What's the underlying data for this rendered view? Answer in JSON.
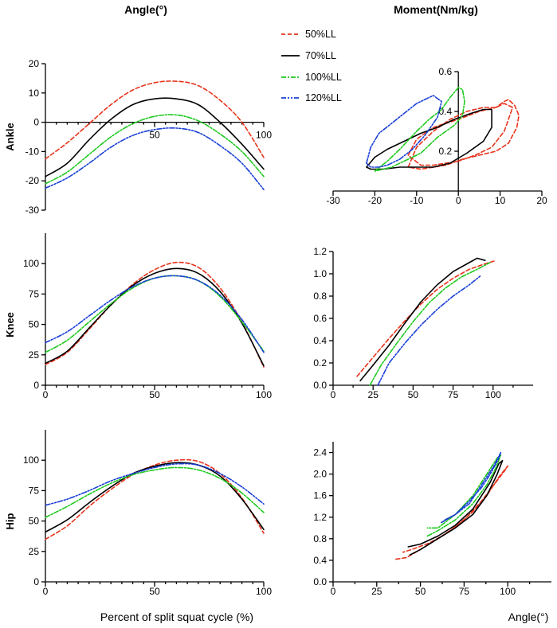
{
  "figure": {
    "col_titles": [
      "Angle(°)",
      "Moment(Nm/kg)"
    ],
    "row_labels": [
      "Ankle",
      "Knee",
      "Hip"
    ],
    "xlabel_left": "Percent of split squat cycle (%)",
    "xlabel_right": "Angle(°)",
    "legend": [
      {
        "name": "50%LL",
        "color": "#e8331c",
        "dash": "dashed"
      },
      {
        "name": "70%LL",
        "color": "#000000",
        "dash": "solid"
      },
      {
        "name": "100%LL",
        "color": "#1fc91f",
        "dash": "dashdot"
      },
      {
        "name": "120%LL",
        "color": "#1a3fd6",
        "dash": "dashdotdot"
      }
    ]
  },
  "chart_data": [
    {
      "id": "ankle-angle",
      "type": "line",
      "row_label": "Ankle",
      "xlabel": "",
      "ylabel": "",
      "xlim": [
        0,
        100
      ],
      "ylim": [
        -30,
        20
      ],
      "xticks": [
        50,
        100
      ],
      "yticks": [
        -30,
        -20,
        -10,
        0,
        10,
        20
      ],
      "x_axis_at": 0,
      "x": [
        0,
        10,
        20,
        30,
        40,
        50,
        60,
        70,
        80,
        90,
        100
      ],
      "series": [
        {
          "name": "50%LL",
          "values": [
            -12.5,
            -7,
            -0.5,
            6,
            11,
            13.5,
            14,
            12.5,
            7.5,
            0,
            -12
          ]
        },
        {
          "name": "70%LL",
          "values": [
            -18.5,
            -14,
            -6,
            1,
            6,
            8,
            8,
            6,
            0,
            -7.5,
            -16
          ]
        },
        {
          "name": "100%LL",
          "values": [
            -21,
            -17,
            -11,
            -5,
            -0.5,
            2,
            2.5,
            0.5,
            -4,
            -10,
            -18.5
          ]
        },
        {
          "name": "120%LL",
          "values": [
            -22.5,
            -19,
            -14,
            -8.5,
            -4.5,
            -2.5,
            -2,
            -3.5,
            -8,
            -14,
            -23
          ]
        }
      ]
    },
    {
      "id": "ankle-moment",
      "type": "line",
      "row_label": "Ankle",
      "xlabel": "",
      "ylabel": "",
      "xlim": [
        -30,
        20
      ],
      "ylim": [
        0,
        0.6
      ],
      "xticks": [
        -30,
        -20,
        -10,
        0,
        10,
        20
      ],
      "yticks": [
        0.2,
        0.4,
        0.6
      ],
      "x_axis_at": 0.0,
      "y_axis_at": 0,
      "series": [
        {
          "name": "50%LL",
          "x": [
            -12,
            -10,
            -6,
            0,
            5,
            9,
            11,
            12,
            13.5,
            14.5,
            14,
            12,
            9,
            5,
            1,
            -3,
            -6,
            -9,
            -12,
            -10,
            -6,
            -2,
            2,
            6,
            9,
            11,
            13,
            11,
            8,
            4,
            0,
            -3,
            -6,
            -9,
            -12
          ],
          "y": [
            0.18,
            0.26,
            0.32,
            0.36,
            0.4,
            0.42,
            0.45,
            0.46,
            0.43,
            0.38,
            0.32,
            0.24,
            0.2,
            0.18,
            0.16,
            0.13,
            0.12,
            0.11,
            0.12,
            0.22,
            0.3,
            0.36,
            0.4,
            0.42,
            0.42,
            0.44,
            0.42,
            0.3,
            0.22,
            0.18,
            0.15,
            0.14,
            0.13,
            0.13,
            0.18
          ]
        },
        {
          "name": "70%LL",
          "x": [
            -22,
            -20,
            -17,
            -13,
            -9,
            -5,
            -1,
            3,
            6,
            8,
            8,
            6,
            2,
            -2,
            -6,
            -10,
            -14,
            -18,
            -21,
            -22
          ],
          "y": [
            0.12,
            0.17,
            0.21,
            0.25,
            0.29,
            0.32,
            0.36,
            0.39,
            0.41,
            0.41,
            0.32,
            0.25,
            0.19,
            0.14,
            0.12,
            0.12,
            0.12,
            0.11,
            0.11,
            0.12
          ]
        },
        {
          "name": "100%LL",
          "x": [
            -20,
            -17,
            -14,
            -10,
            -7,
            -4,
            -2,
            0,
            1,
            1.5,
            1,
            -1,
            -3,
            -5,
            -7,
            -9,
            -12,
            -14,
            -16,
            -18,
            -20
          ],
          "y": [
            0.1,
            0.15,
            0.21,
            0.3,
            0.36,
            0.41,
            0.47,
            0.52,
            0.51,
            0.45,
            0.38,
            0.33,
            0.3,
            0.27,
            0.23,
            0.19,
            0.16,
            0.14,
            0.12,
            0.11,
            0.1
          ]
        },
        {
          "name": "120%LL",
          "x": [
            -22,
            -21,
            -19,
            -16,
            -13,
            -10,
            -7,
            -6,
            -4,
            -5,
            -8,
            -11,
            -14,
            -17,
            -19,
            -21,
            -22
          ],
          "y": [
            0.14,
            0.22,
            0.29,
            0.34,
            0.39,
            0.44,
            0.47,
            0.48,
            0.45,
            0.37,
            0.28,
            0.21,
            0.16,
            0.13,
            0.12,
            0.12,
            0.14
          ]
        }
      ]
    },
    {
      "id": "knee-angle",
      "type": "line",
      "row_label": "Knee",
      "xlabel": "",
      "ylabel": "",
      "xlim": [
        0,
        100
      ],
      "ylim": [
        0,
        125
      ],
      "xticks": [
        0,
        50,
        100
      ],
      "yticks": [
        0,
        25,
        50,
        75,
        100
      ],
      "x_axis_at": 0,
      "x": [
        0,
        10,
        20,
        30,
        40,
        50,
        60,
        70,
        80,
        90,
        100
      ],
      "series": [
        {
          "name": "50%LL",
          "values": [
            17,
            27,
            46,
            66,
            83,
            95,
            101,
            97,
            80,
            52,
            15
          ]
        },
        {
          "name": "70%LL",
          "values": [
            18,
            28,
            47,
            66,
            82,
            92,
            96,
            92,
            77,
            51,
            16
          ]
        },
        {
          "name": "100%LL",
          "values": [
            27,
            37,
            52,
            67,
            80,
            88,
            90,
            86,
            73,
            52,
            28
          ]
        },
        {
          "name": "120%LL",
          "values": [
            35,
            44,
            57,
            70,
            81,
            88,
            90,
            86,
            74,
            54,
            27
          ]
        }
      ]
    },
    {
      "id": "knee-moment",
      "type": "line",
      "row_label": "Knee",
      "xlabel": "",
      "ylabel": "",
      "xlim": [
        0,
        125
      ],
      "ylim": [
        0,
        1.2
      ],
      "xticks": [
        0,
        25,
        50,
        75,
        100
      ],
      "yticks": [
        0,
        0.2,
        0.4,
        0.6,
        0.8,
        1.0,
        1.2
      ],
      "x_axis_at": 0,
      "series": [
        {
          "name": "50%LL",
          "x": [
            15,
            25,
            35,
            45,
            55,
            65,
            75,
            85,
            95,
            102
          ],
          "y": [
            0.08,
            0.25,
            0.42,
            0.58,
            0.73,
            0.86,
            0.96,
            1.04,
            1.09,
            1.12
          ]
        },
        {
          "name": "70%LL",
          "x": [
            17,
            25,
            35,
            45,
            55,
            65,
            75,
            85,
            90,
            95
          ],
          "y": [
            0.04,
            0.18,
            0.36,
            0.56,
            0.75,
            0.9,
            1.02,
            1.1,
            1.14,
            1.12
          ]
        },
        {
          "name": "100%LL",
          "x": [
            23,
            30,
            40,
            50,
            60,
            70,
            80,
            90,
            98
          ],
          "y": [
            0.0,
            0.18,
            0.38,
            0.57,
            0.74,
            0.87,
            0.97,
            1.04,
            1.1
          ]
        },
        {
          "name": "120%LL",
          "x": [
            28,
            35,
            45,
            55,
            65,
            75,
            85,
            92
          ],
          "y": [
            0.0,
            0.2,
            0.38,
            0.54,
            0.68,
            0.8,
            0.9,
            0.98
          ]
        }
      ]
    },
    {
      "id": "hip-angle",
      "type": "line",
      "row_label": "Hip",
      "xlabel": "Percent of split squat cycle (%)",
      "ylabel": "",
      "xlim": [
        0,
        100
      ],
      "ylim": [
        0,
        125
      ],
      "xticks": [
        0,
        50,
        100
      ],
      "yticks": [
        0,
        25,
        50,
        75,
        100
      ],
      "x_axis_at": 0,
      "x": [
        0,
        10,
        20,
        30,
        40,
        50,
        60,
        70,
        80,
        90,
        100
      ],
      "series": [
        {
          "name": "50%LL",
          "values": [
            35,
            46,
            62,
            76,
            88,
            96,
            100,
            99,
            89,
            69,
            40
          ]
        },
        {
          "name": "70%LL",
          "values": [
            41,
            51,
            65,
            78,
            89,
            95,
            98,
            96,
            87,
            68,
            43
          ]
        },
        {
          "name": "100%LL",
          "values": [
            53,
            62,
            72,
            81,
            88,
            92,
            94,
            92,
            85,
            73,
            57
          ]
        },
        {
          "name": "120%LL",
          "values": [
            63,
            68,
            75,
            83,
            89,
            94,
            97,
            96,
            89,
            78,
            64
          ]
        }
      ]
    },
    {
      "id": "hip-moment",
      "type": "line",
      "row_label": "Hip",
      "xlabel": "Angle(°)",
      "ylabel": "",
      "xlim": [
        0,
        125
      ],
      "ylim": [
        0,
        2.6
      ],
      "xticks": [
        0,
        25,
        50,
        75,
        100
      ],
      "yticks": [
        0,
        0.4,
        0.8,
        1.2,
        1.6,
        2.0,
        2.4
      ],
      "x_axis_at": 0,
      "series": [
        {
          "name": "50%LL",
          "x": [
            36,
            42,
            50,
            60,
            70,
            80,
            88,
            95,
            100,
            98,
            92,
            85,
            75,
            65,
            55,
            45,
            40
          ],
          "y": [
            0.42,
            0.45,
            0.6,
            0.8,
            1.02,
            1.3,
            1.6,
            1.95,
            2.15,
            2.05,
            1.8,
            1.5,
            1.15,
            0.9,
            0.72,
            0.6,
            0.55
          ]
        },
        {
          "name": "70%LL",
          "x": [
            44,
            50,
            60,
            70,
            80,
            88,
            94,
            97,
            95,
            90,
            80,
            70,
            60,
            50,
            43
          ],
          "y": [
            0.5,
            0.6,
            0.8,
            1.0,
            1.25,
            1.6,
            2.0,
            2.25,
            2.2,
            1.85,
            1.35,
            1.05,
            0.85,
            0.7,
            0.65
          ]
        },
        {
          "name": "100%LL",
          "x": [
            54,
            60,
            70,
            80,
            88,
            93,
            96,
            94,
            88,
            80,
            70,
            60,
            54
          ],
          "y": [
            0.85,
            0.95,
            1.15,
            1.45,
            1.8,
            2.1,
            2.35,
            2.3,
            2.0,
            1.6,
            1.25,
            1.0,
            1.0
          ]
        },
        {
          "name": "120%LL",
          "x": [
            62,
            70,
            78,
            85,
            90,
            95,
            96,
            92,
            85,
            78,
            70,
            64
          ],
          "y": [
            1.1,
            1.25,
            1.5,
            1.75,
            2.0,
            2.3,
            2.4,
            2.15,
            1.8,
            1.45,
            1.25,
            1.15
          ]
        }
      ]
    }
  ]
}
